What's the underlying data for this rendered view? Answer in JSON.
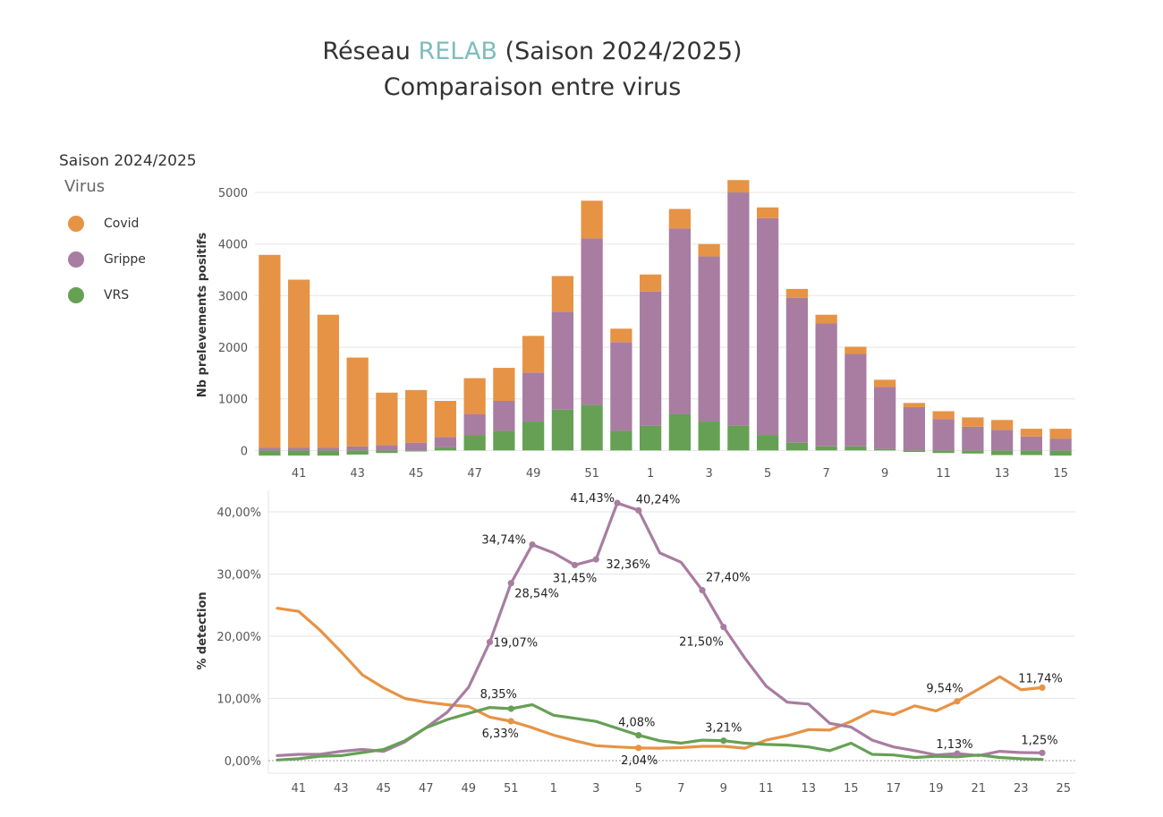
{
  "header": {
    "title_prefix": "Réseau ",
    "title_accent": "RELAB",
    "title_suffix": " (Saison 2024/2025)",
    "subtitle": "Comparaison entre virus"
  },
  "legend": {
    "season": "Saison 2024/2025",
    "title": "Virus",
    "items": [
      {
        "label": "Covid",
        "color": "#e69345"
      },
      {
        "label": "Grippe",
        "color": "#a87da1"
      },
      {
        "label": "VRS",
        "color": "#66a055"
      }
    ]
  },
  "chart_data": [
    {
      "type": "bar",
      "stacked": true,
      "ylabel": "Nb prelevements positifs",
      "ylim": [
        -150,
        5400
      ],
      "yticks": [
        0,
        1000,
        2000,
        3000,
        4000,
        5000
      ],
      "categories": [
        40,
        41,
        42,
        43,
        44,
        45,
        46,
        47,
        48,
        49,
        50,
        51,
        52,
        1,
        2,
        3,
        4,
        5,
        6,
        7,
        8,
        9,
        10,
        11,
        12,
        13,
        14,
        15
      ],
      "xtick_labels": [
        "41",
        "43",
        "45",
        "47",
        "49",
        "51",
        "1",
        "3",
        "5",
        "7",
        "9",
        "11",
        "13",
        "15"
      ],
      "series": [
        {
          "name": "VRS",
          "color": "#66a055",
          "values": [
            -100,
            -100,
            -100,
            -80,
            -50,
            -20,
            60,
            300,
            380,
            560,
            790,
            880,
            380,
            480,
            700,
            560,
            480,
            300,
            150,
            80,
            80,
            30,
            -30,
            -50,
            -60,
            -90,
            -90,
            -100
          ]
        },
        {
          "name": "Grippe",
          "color": "#a87da1",
          "values": [
            50,
            50,
            50,
            80,
            100,
            150,
            200,
            400,
            580,
            950,
            1900,
            3230,
            1720,
            2600,
            3600,
            3200,
            4520,
            4200,
            2810,
            2380,
            1790,
            1200,
            840,
            610,
            460,
            400,
            270,
            230
          ]
        },
        {
          "name": "Covid",
          "color": "#e69345",
          "values": [
            3740,
            3260,
            2580,
            1720,
            1020,
            1020,
            700,
            700,
            640,
            710,
            690,
            730,
            260,
            330,
            380,
            240,
            240,
            210,
            170,
            170,
            140,
            140,
            80,
            150,
            180,
            190,
            150,
            190
          ]
        }
      ]
    },
    {
      "type": "line",
      "ylabel": "% detection",
      "ylim": [
        0,
        42
      ],
      "yticks": [
        0,
        10,
        20,
        30,
        40
      ],
      "ytick_labels": [
        "0,00%",
        "10,00%",
        "20,00%",
        "30,00%",
        "40,00%"
      ],
      "x": [
        40,
        41,
        42,
        43,
        44,
        45,
        46,
        47,
        48,
        49,
        50,
        51,
        52,
        1,
        2,
        3,
        4,
        5,
        6,
        7,
        8,
        9,
        10,
        11,
        12,
        13,
        14,
        15,
        16,
        17,
        18,
        19,
        20,
        21,
        22,
        23,
        24
      ],
      "xtick_labels": [
        "41",
        "43",
        "45",
        "47",
        "49",
        "51",
        "1",
        "3",
        "5",
        "7",
        "9",
        "11",
        "13",
        "15",
        "17",
        "19",
        "21",
        "23",
        "25"
      ],
      "series": [
        {
          "name": "Covid",
          "color": "#e69345",
          "values": [
            24.5,
            24.0,
            21.0,
            17.5,
            13.8,
            11.7,
            10.0,
            9.4,
            9.0,
            8.7,
            7.0,
            6.33,
            5.3,
            4.1,
            3.2,
            2.4,
            2.2,
            2.04,
            2.0,
            2.1,
            2.3,
            2.3,
            2.0,
            3.3,
            4.0,
            5.0,
            4.9,
            6.3,
            8.0,
            7.4,
            8.8,
            8.0,
            9.54,
            11.5,
            13.5,
            11.4,
            11.74
          ]
        },
        {
          "name": "Grippe",
          "color": "#a87da1",
          "values": [
            0.8,
            1.0,
            1.0,
            1.5,
            1.8,
            1.5,
            3.0,
            5.3,
            7.8,
            11.8,
            19.07,
            28.54,
            34.74,
            33.4,
            31.45,
            32.36,
            41.43,
            40.24,
            33.4,
            31.9,
            27.4,
            21.5,
            16.5,
            12.0,
            9.4,
            9.1,
            6.0,
            5.4,
            3.3,
            2.2,
            1.6,
            0.9,
            1.13,
            0.8,
            1.5,
            1.3,
            1.25
          ]
        },
        {
          "name": "VRS",
          "color": "#66a055",
          "values": [
            0.1,
            0.3,
            0.7,
            0.8,
            1.3,
            1.8,
            3.2,
            5.3,
            6.6,
            7.6,
            8.55,
            8.35,
            9.0,
            7.3,
            6.8,
            6.3,
            5.2,
            4.08,
            3.2,
            2.8,
            3.3,
            3.21,
            2.8,
            2.6,
            2.5,
            2.2,
            1.6,
            2.8,
            1.0,
            0.9,
            0.5,
            0.7,
            0.6,
            0.9,
            0.5,
            0.3,
            0.2
          ]
        }
      ],
      "annotations": [
        {
          "series": "Grippe",
          "x": 50,
          "text": "19,07%"
        },
        {
          "series": "Grippe",
          "x": 51,
          "text": "28,54%"
        },
        {
          "series": "Grippe",
          "x": 52,
          "text": "34,74%"
        },
        {
          "series": "Grippe",
          "x": 2,
          "text": "31,45%"
        },
        {
          "series": "Grippe",
          "x": 3,
          "text": "32,36%"
        },
        {
          "series": "Grippe",
          "x": 4,
          "text": "41,43%"
        },
        {
          "series": "Grippe",
          "x": 5,
          "text": "40,24%"
        },
        {
          "series": "Grippe",
          "x": 8,
          "text": "27,40%"
        },
        {
          "series": "Grippe",
          "x": 9,
          "text": "21,50%"
        },
        {
          "series": "Grippe",
          "x": 20,
          "text": "1,13%"
        },
        {
          "series": "Grippe",
          "x": 24,
          "text": "1,25%"
        },
        {
          "series": "VRS",
          "x": 51,
          "text": "8,35%"
        },
        {
          "series": "VRS",
          "x": 5,
          "text": "4,08%"
        },
        {
          "series": "VRS",
          "x": 9,
          "text": "3,21%"
        },
        {
          "series": "Covid",
          "x": 51,
          "text": "6,33%"
        },
        {
          "series": "Covid",
          "x": 5,
          "text": "2,04%"
        },
        {
          "series": "Covid",
          "x": 20,
          "text": "9,54%"
        },
        {
          "series": "Covid",
          "x": 24,
          "text": "11,74%"
        }
      ]
    }
  ]
}
